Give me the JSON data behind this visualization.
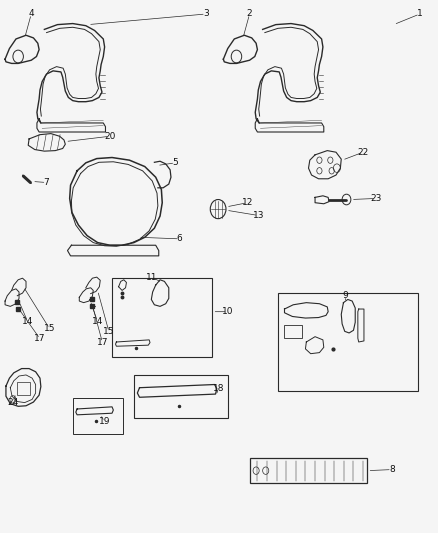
{
  "background_color": "#f5f5f5",
  "fig_width": 4.38,
  "fig_height": 5.33,
  "dpi": 100,
  "line_color": "#2a2a2a",
  "label_color": "#111111",
  "label_fontsize": 6.5,
  "leader_lw": 0.5,
  "part_lw": 0.8,
  "labels": {
    "4": [
      0.07,
      0.975,
      0.1,
      0.93
    ],
    "3": [
      0.47,
      0.975,
      0.42,
      0.95
    ],
    "2": [
      0.57,
      0.975,
      0.6,
      0.93
    ],
    "1": [
      0.96,
      0.975,
      0.9,
      0.95
    ],
    "20": [
      0.25,
      0.745,
      0.22,
      0.73
    ],
    "5": [
      0.4,
      0.695,
      0.37,
      0.68
    ],
    "7": [
      0.11,
      0.66,
      0.09,
      0.655
    ],
    "12": [
      0.57,
      0.62,
      0.535,
      0.608
    ],
    "13": [
      0.6,
      0.595,
      0.545,
      0.595
    ],
    "6": [
      0.41,
      0.555,
      0.37,
      0.56
    ],
    "22": [
      0.83,
      0.715,
      0.78,
      0.7
    ],
    "23": [
      0.86,
      0.63,
      0.81,
      0.62
    ],
    "9": [
      0.79,
      0.445,
      0.79,
      0.43
    ],
    "10": [
      0.54,
      0.415,
      0.51,
      0.42
    ],
    "11": [
      0.35,
      0.48,
      0.37,
      0.475
    ],
    "14a": [
      0.07,
      0.395,
      0.095,
      0.4
    ],
    "15a": [
      0.12,
      0.383,
      0.13,
      0.39
    ],
    "17a": [
      0.1,
      0.366,
      0.115,
      0.372
    ],
    "14b": [
      0.22,
      0.395,
      0.215,
      0.4
    ],
    "15b": [
      0.245,
      0.377,
      0.235,
      0.385
    ],
    "17b": [
      0.235,
      0.357,
      0.228,
      0.365
    ],
    "18": [
      0.505,
      0.27,
      0.49,
      0.265
    ],
    "19": [
      0.24,
      0.208,
      0.245,
      0.22
    ],
    "24": [
      0.035,
      0.245,
      0.055,
      0.255
    ],
    "8": [
      0.9,
      0.118,
      0.855,
      0.118
    ]
  }
}
